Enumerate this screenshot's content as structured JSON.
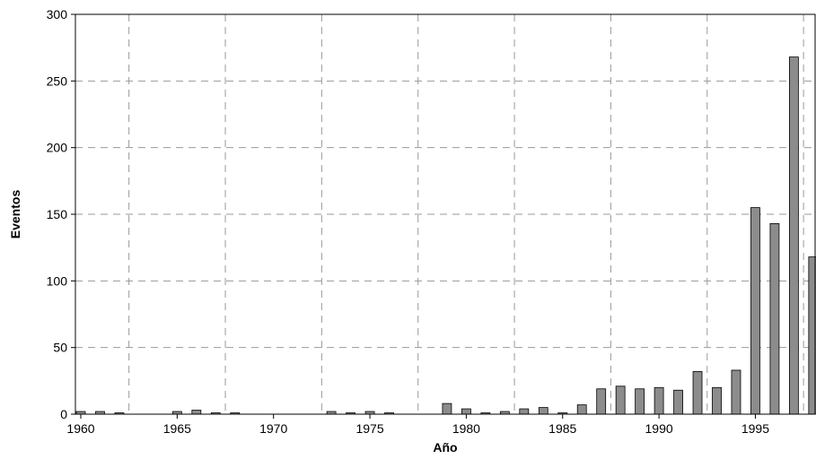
{
  "chart_data": {
    "type": "bar",
    "xlabel": "Año",
    "ylabel": "Eventos",
    "xlim": [
      1960,
      1998
    ],
    "ylim": [
      0,
      300
    ],
    "x_ticks": [
      "1960",
      "1965",
      "1970",
      "1975",
      "1980",
      "1985",
      "1990",
      "1995"
    ],
    "y_ticks": [
      "0",
      "50",
      "100",
      "150",
      "200",
      "250",
      "300"
    ],
    "grid": true,
    "bar_color": "#8c8c8c",
    "x": [
      1960,
      1961,
      1962,
      1963,
      1964,
      1965,
      1966,
      1967,
      1968,
      1969,
      1970,
      1971,
      1972,
      1973,
      1974,
      1975,
      1976,
      1977,
      1978,
      1979,
      1980,
      1981,
      1982,
      1983,
      1984,
      1985,
      1986,
      1987,
      1988,
      1989,
      1990,
      1991,
      1992,
      1993,
      1994,
      1995,
      1996,
      1997,
      1998
    ],
    "values": [
      2,
      2,
      1,
      0,
      0,
      2,
      3,
      1,
      1,
      0,
      0,
      0,
      0,
      2,
      1,
      2,
      1,
      0,
      0,
      8,
      4,
      1,
      2,
      4,
      5,
      1,
      7,
      19,
      21,
      19,
      20,
      18,
      32,
      20,
      33,
      155,
      143,
      268,
      118
    ]
  }
}
